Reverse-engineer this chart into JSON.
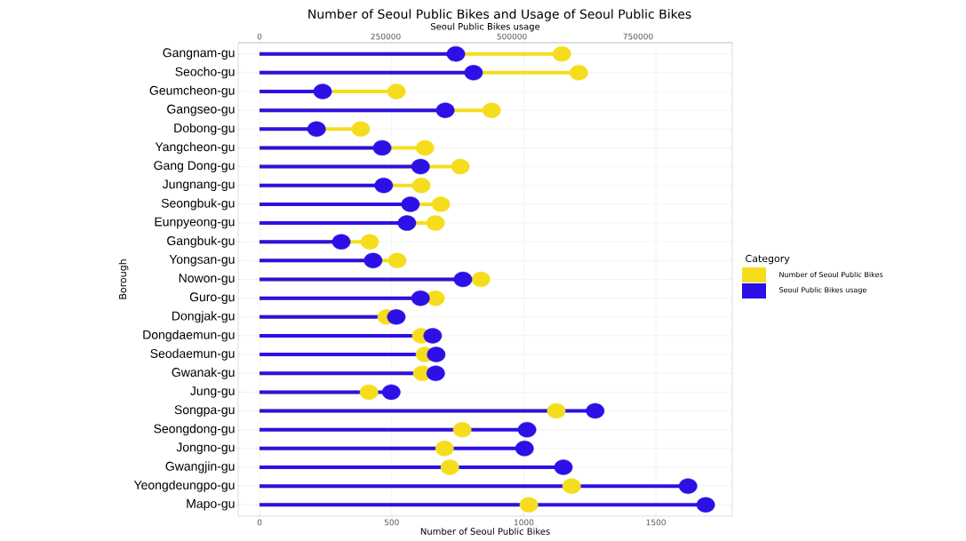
{
  "chart_data": {
    "type": "lollipop",
    "title": "Number of Seoul Public Bikes and Usage of Seoul Public Bikes",
    "xlabel": "Number of Seoul Public Bikes",
    "x2label": "Seoul Public Bikes usage",
    "ylabel": "Borough",
    "legend_title": "Category",
    "categories": [
      "Gangnam-gu",
      "Seocho-gu",
      "Geumcheon-gu",
      "Gangseo-gu",
      "Dobong-gu",
      "Yangcheon-gu",
      "Gang Dong-gu",
      "Jungnang-gu",
      "Seongbuk-gu",
      "Eunpyeong-gu",
      "Gangbuk-gu",
      "Yongsan-gu",
      "Nowon-gu",
      "Guro-gu",
      "Dongjak-gu",
      "Dongdaemun-gu",
      "Seodaemun-gu",
      "Gwanak-gu",
      "Jung-gu",
      "Songpa-gu",
      "Seongdong-gu",
      "Jongno-gu",
      "Gwangjin-gu",
      "Yeongdeungpo-gu",
      "Mapo-gu"
    ],
    "series": [
      {
        "name": "Number of Seoul Public Bikes",
        "color": "#f5dd1e",
        "values": [
          1144,
          1208,
          518,
          878,
          383,
          626,
          760,
          612,
          686,
          666,
          417,
          521,
          838,
          666,
          481,
          612,
          626,
          616,
          414,
          1123,
          767,
          700,
          720,
          1181,
          1019
        ]
      },
      {
        "name": "Seoul Public Bikes usage",
        "color": "#2c10e6",
        "axis": "x2",
        "values": [
          389000,
          424000,
          125000,
          368000,
          113000,
          243000,
          319000,
          246000,
          299000,
          292000,
          162000,
          225000,
          403000,
          319000,
          271000,
          343000,
          350000,
          349000,
          261000,
          665000,
          530000,
          525000,
          602000,
          849000,
          884000
        ]
      }
    ],
    "xlim": [
      -81,
      1789
    ],
    "xticks": [
      0,
      500,
      1000,
      1500
    ],
    "x2lim": [
      -42300,
      936600
    ],
    "x2ticks": [
      0,
      250000,
      500000,
      750000
    ],
    "orientation": "horizontal",
    "grid": true,
    "legend": "right",
    "marker": "circle"
  }
}
